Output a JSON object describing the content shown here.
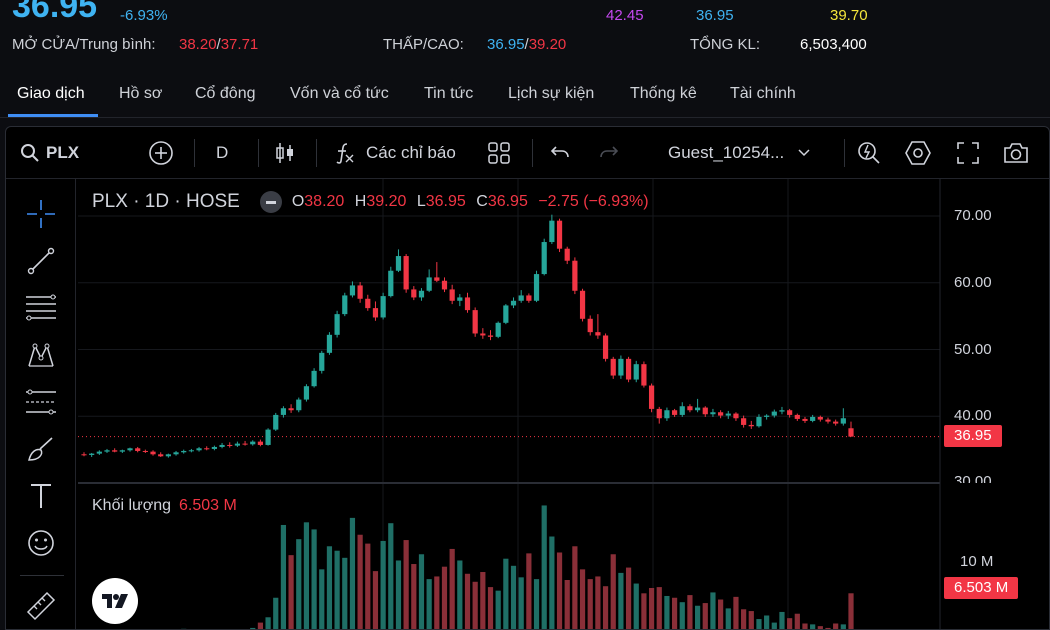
{
  "stats": {
    "price": "36.95",
    "change_pct": "-6.93%",
    "top_values": [
      "42.45",
      "36.95",
      "39.70"
    ],
    "open_avg_label": "MỞ CỬA/Trung bình:",
    "open_value": "38.20",
    "avg_value": "37.71",
    "low_high_label": "THẤP/CAO:",
    "low_value": "36.95",
    "high_value": "39.20",
    "volume_label": "TỔNG KL:",
    "volume_value": "6,503,400",
    "colors": {
      "ceiling": "#c548f0",
      "floor": "#3fb3f2",
      "ref": "#f5e63b",
      "down": "#f23645",
      "up": "#26a69a"
    }
  },
  "tabs": [
    "Giao dịch",
    "Hồ sơ",
    "Cổ đông",
    "Vốn và cổ tức",
    "Tin tức",
    "Lịch sự kiện",
    "Thống kê",
    "Tài chính"
  ],
  "toolbar": {
    "symbol": "PLX",
    "interval": "D",
    "indicators_label": "Các chỉ báo",
    "layout_name": "Guest_10254..."
  },
  "sidebar_icons": [
    "crosshair-icon",
    "trend-line-icon",
    "fib-lines-icon",
    "pattern-icon",
    "projection-icon",
    "brush-icon",
    "text-icon",
    "emoji-icon",
    "ruler-icon"
  ],
  "legend": {
    "symbol_line": "PLX · 1D · HOSE",
    "o_key": "O",
    "o_val": "38.20",
    "h_key": "H",
    "h_val": "39.20",
    "l_key": "L",
    "l_val": "36.95",
    "c_key": "C",
    "c_val": "36.95",
    "change": "−2.75 (−6.93%)"
  },
  "volume_legend": {
    "label": "Khối lượng",
    "value": "6.503 M"
  },
  "price_axis": {
    "ticks": [
      "70.00",
      "60.00",
      "50.00",
      "40.00",
      "30.00"
    ],
    "last_price_tag": "36.95"
  },
  "volume_axis": {
    "ticks": [
      "10 M"
    ],
    "last_volume_tag": "6.503 M"
  },
  "chart_data": {
    "type": "candlestick",
    "title": "PLX · 1D · HOSE",
    "ylim": [
      30,
      70
    ],
    "y_ticks": [
      30,
      40,
      50,
      60,
      70
    ],
    "last_price": 36.95,
    "ohlc": [
      [
        34.3,
        34.6,
        34.0,
        34.2
      ],
      [
        34.2,
        34.5,
        33.9,
        34.4
      ],
      [
        34.4,
        34.9,
        34.2,
        34.7
      ],
      [
        34.7,
        35.1,
        34.5,
        34.9
      ],
      [
        34.9,
        35.2,
        34.6,
        34.7
      ],
      [
        34.7,
        35.0,
        34.5,
        34.9
      ],
      [
        34.9,
        35.3,
        34.7,
        35.2
      ],
      [
        35.2,
        35.4,
        34.6,
        34.8
      ],
      [
        34.8,
        35.0,
        34.5,
        34.7
      ],
      [
        34.7,
        34.9,
        34.1,
        34.3
      ],
      [
        34.3,
        34.6,
        33.9,
        34.0
      ],
      [
        34.0,
        34.4,
        33.8,
        34.3
      ],
      [
        34.3,
        34.8,
        34.1,
        34.6
      ],
      [
        34.6,
        35.0,
        34.4,
        34.8
      ],
      [
        34.8,
        35.1,
        34.6,
        34.9
      ],
      [
        34.9,
        35.4,
        34.7,
        35.2
      ],
      [
        35.2,
        35.5,
        34.9,
        35.1
      ],
      [
        35.1,
        35.6,
        34.9,
        35.4
      ],
      [
        35.4,
        36.0,
        35.2,
        35.7
      ],
      [
        35.7,
        36.1,
        35.3,
        35.6
      ],
      [
        35.6,
        36.2,
        35.4,
        35.9
      ],
      [
        35.9,
        36.3,
        35.6,
        35.8
      ],
      [
        35.8,
        36.4,
        35.6,
        36.2
      ],
      [
        36.2,
        36.5,
        35.5,
        35.7
      ],
      [
        35.7,
        38.2,
        35.6,
        38.0
      ],
      [
        38.0,
        40.5,
        37.8,
        40.2
      ],
      [
        40.2,
        41.5,
        39.8,
        41.2
      ],
      [
        41.2,
        41.8,
        40.5,
        40.9
      ],
      [
        40.9,
        42.8,
        40.6,
        42.5
      ],
      [
        42.5,
        44.8,
        42.2,
        44.5
      ],
      [
        44.5,
        47.2,
        44.3,
        46.8
      ],
      [
        46.8,
        49.8,
        46.4,
        49.5
      ],
      [
        49.5,
        52.6,
        49.2,
        52.2
      ],
      [
        52.2,
        55.8,
        51.8,
        55.3
      ],
      [
        55.3,
        58.5,
        55.0,
        58.1
      ],
      [
        58.1,
        60.2,
        57.8,
        59.6
      ],
      [
        59.6,
        60.1,
        57.0,
        57.6
      ],
      [
        57.6,
        58.2,
        55.8,
        56.2
      ],
      [
        56.2,
        57.2,
        54.3,
        54.8
      ],
      [
        54.8,
        58.5,
        54.5,
        58.0
      ],
      [
        58.0,
        62.4,
        57.8,
        61.8
      ],
      [
        61.8,
        65.0,
        61.6,
        64.0
      ],
      [
        64.0,
        64.3,
        58.5,
        59.0
      ],
      [
        59.0,
        59.5,
        57.4,
        57.8
      ],
      [
        57.8,
        59.2,
        57.3,
        58.8
      ],
      [
        58.8,
        62.0,
        58.6,
        60.8
      ],
      [
        60.8,
        63.1,
        60.1,
        60.3
      ],
      [
        60.3,
        60.8,
        58.6,
        59.0
      ],
      [
        59.0,
        59.7,
        56.8,
        57.3
      ],
      [
        57.3,
        58.3,
        56.5,
        57.8
      ],
      [
        57.8,
        58.5,
        55.5,
        55.9
      ],
      [
        55.9,
        56.3,
        51.9,
        52.4
      ],
      [
        52.4,
        53.2,
        51.6,
        52.1
      ],
      [
        52.1,
        52.9,
        51.4,
        51.9
      ],
      [
        51.9,
        54.2,
        51.7,
        54.0
      ],
      [
        54.0,
        56.8,
        53.8,
        56.6
      ],
      [
        56.6,
        57.8,
        56.2,
        57.3
      ],
      [
        57.3,
        58.9,
        57.0,
        58.1
      ],
      [
        58.1,
        58.4,
        57.0,
        57.3
      ],
      [
        57.3,
        61.8,
        57.1,
        61.3
      ],
      [
        61.3,
        66.6,
        61.1,
        66.1
      ],
      [
        66.1,
        70.2,
        65.8,
        69.3
      ],
      [
        69.3,
        69.6,
        64.6,
        65.1
      ],
      [
        65.1,
        65.4,
        62.8,
        63.3
      ],
      [
        63.3,
        63.8,
        58.3,
        58.8
      ],
      [
        58.8,
        59.1,
        54.2,
        54.6
      ],
      [
        54.6,
        55.1,
        52.1,
        52.6
      ],
      [
        52.6,
        55.3,
        51.6,
        52.1
      ],
      [
        52.1,
        52.4,
        48.2,
        48.6
      ],
      [
        48.6,
        48.9,
        45.6,
        46.1
      ],
      [
        46.1,
        49.1,
        45.6,
        48.6
      ],
      [
        48.6,
        48.9,
        45.1,
        45.5
      ],
      [
        45.5,
        48.3,
        45.1,
        47.8
      ],
      [
        47.8,
        48.2,
        44.3,
        44.6
      ],
      [
        44.6,
        44.9,
        40.6,
        41.1
      ],
      [
        41.1,
        41.4,
        38.9,
        39.7
      ],
      [
        39.7,
        41.3,
        39.3,
        40.9
      ],
      [
        40.9,
        41.1,
        39.9,
        40.2
      ],
      [
        40.2,
        42.1,
        39.9,
        41.5
      ],
      [
        41.5,
        41.8,
        40.6,
        40.9
      ],
      [
        40.9,
        42.6,
        40.6,
        41.3
      ],
      [
        41.3,
        41.5,
        39.9,
        40.3
      ],
      [
        40.3,
        41.1,
        39.9,
        40.6
      ],
      [
        40.6,
        40.9,
        39.7,
        40.1
      ],
      [
        40.1,
        40.8,
        39.6,
        40.4
      ],
      [
        40.4,
        40.6,
        39.3,
        39.7
      ],
      [
        39.7,
        40.1,
        38.3,
        38.7
      ],
      [
        38.7,
        39.3,
        38.1,
        38.5
      ],
      [
        38.5,
        40.3,
        38.3,
        39.9
      ],
      [
        39.9,
        40.3,
        39.5,
        40.1
      ],
      [
        40.1,
        41.0,
        39.8,
        40.7
      ],
      [
        40.7,
        41.4,
        40.3,
        40.9
      ],
      [
        40.9,
        41.1,
        39.8,
        40.2
      ],
      [
        40.2,
        40.4,
        39.3,
        39.6
      ],
      [
        39.6,
        39.9,
        39.0,
        39.3
      ],
      [
        39.3,
        40.2,
        39.1,
        39.9
      ],
      [
        39.9,
        40.1,
        39.2,
        39.5
      ],
      [
        39.5,
        39.8,
        38.9,
        39.2
      ],
      [
        39.2,
        39.5,
        38.6,
        38.9
      ],
      [
        38.9,
        41.2,
        38.6,
        39.7
      ],
      [
        38.2,
        39.2,
        36.95,
        36.95
      ]
    ],
    "volume_M": [
      2.1,
      1.8,
      2.4,
      1.6,
      2.0,
      1.5,
      2.2,
      1.9,
      1.7,
      2.3,
      1.4,
      2.0,
      1.8,
      2.5,
      1.6,
      1.9,
      2.1,
      2.4,
      1.7,
      2.0,
      2.2,
      1.8,
      2.6,
      3.2,
      3.8,
      6.0,
      14.2,
      10.8,
      12.6,
      14.5,
      13.7,
      9.2,
      11.8,
      11.3,
      10.5,
      15.0,
      13.1,
      12.1,
      9.0,
      12.4,
      14.4,
      10.2,
      12.5,
      9.8,
      10.9,
      8.1,
      8.4,
      9.5,
      11.5,
      10.2,
      8.7,
      7.8,
      8.9,
      7.2,
      6.8,
      10.4,
      9.6,
      8.3,
      11.0,
      8.1,
      16.4,
      12.9,
      11.1,
      8.0,
      11.8,
      9.2,
      8.1,
      8.4,
      7.3,
      10.9,
      8.8,
      9.4,
      7.6,
      6.5,
      7.1,
      7.2,
      6.2,
      6.0,
      5.5,
      6.3,
      5.1,
      5.4,
      6.6,
      5.8,
      4.8,
      6.1,
      4.7,
      4.5,
      3.6,
      4.0,
      3.2,
      4.4,
      3.7,
      4.2,
      3.1,
      3.0,
      2.8,
      2.6,
      3.1,
      3.0,
      6.503
    ],
    "volume_ylim": [
      0,
      16
    ],
    "volume_ticks": [
      "10 M"
    ]
  }
}
